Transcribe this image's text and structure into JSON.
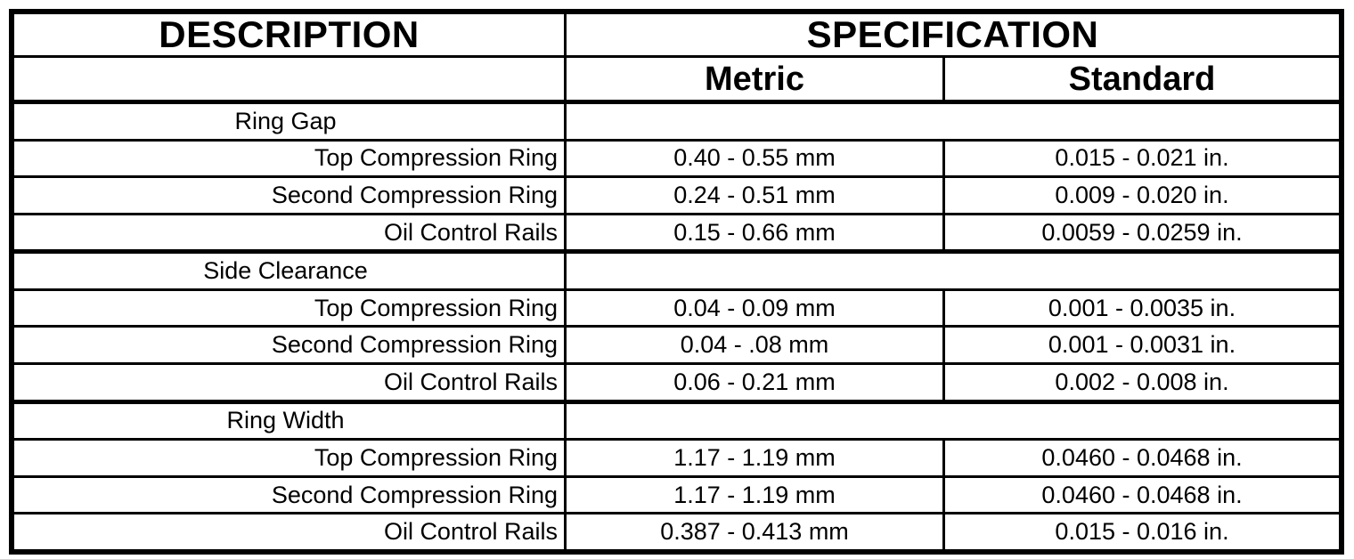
{
  "header": {
    "description": "DESCRIPTION",
    "specification": "SPECIFICATION",
    "metric": "Metric",
    "standard": "Standard"
  },
  "rows": [
    {
      "kind": "section",
      "label": "Ring Gap",
      "metric": "",
      "standard": ""
    },
    {
      "kind": "detail",
      "label": "Top Compression Ring",
      "metric": "0.40 - 0.55 mm",
      "standard": "0.015 - 0.021 in."
    },
    {
      "kind": "detail",
      "label": "Second Compression Ring",
      "metric": "0.24 - 0.51 mm",
      "standard": "0.009 - 0.020 in."
    },
    {
      "kind": "detail",
      "label": "Oil Control Rails",
      "metric": "0.15 - 0.66 mm",
      "standard": "0.0059 - 0.0259 in."
    },
    {
      "kind": "section",
      "label": "Side Clearance",
      "metric": "",
      "standard": ""
    },
    {
      "kind": "detail",
      "label": "Top Compression Ring",
      "metric": "0.04 - 0.09 mm",
      "standard": "0.001 - 0.0035 in."
    },
    {
      "kind": "detail",
      "label": "Second Compression Ring",
      "metric": "0.04 - .08 mm",
      "standard": "0.001 - 0.0031 in."
    },
    {
      "kind": "detail",
      "label": "Oil Control Rails",
      "metric": "0.06 - 0.21 mm",
      "standard": "0.002 - 0.008 in."
    },
    {
      "kind": "section",
      "label": "Ring Width",
      "metric": "",
      "standard": ""
    },
    {
      "kind": "detail",
      "label": "Top Compression Ring",
      "metric": "1.17 - 1.19 mm",
      "standard": "0.0460 - 0.0468 in."
    },
    {
      "kind": "detail",
      "label": "Second Compression Ring",
      "metric": "1.17 - 1.19 mm",
      "standard": "0.0460 - 0.0468 in."
    },
    {
      "kind": "detail",
      "label": "Oil Control Rails",
      "metric": "0.387 - 0.413 mm",
      "standard": "0.015 - 0.016 in."
    }
  ],
  "colors": {
    "ink": "#000000",
    "paper": "#ffffff"
  }
}
